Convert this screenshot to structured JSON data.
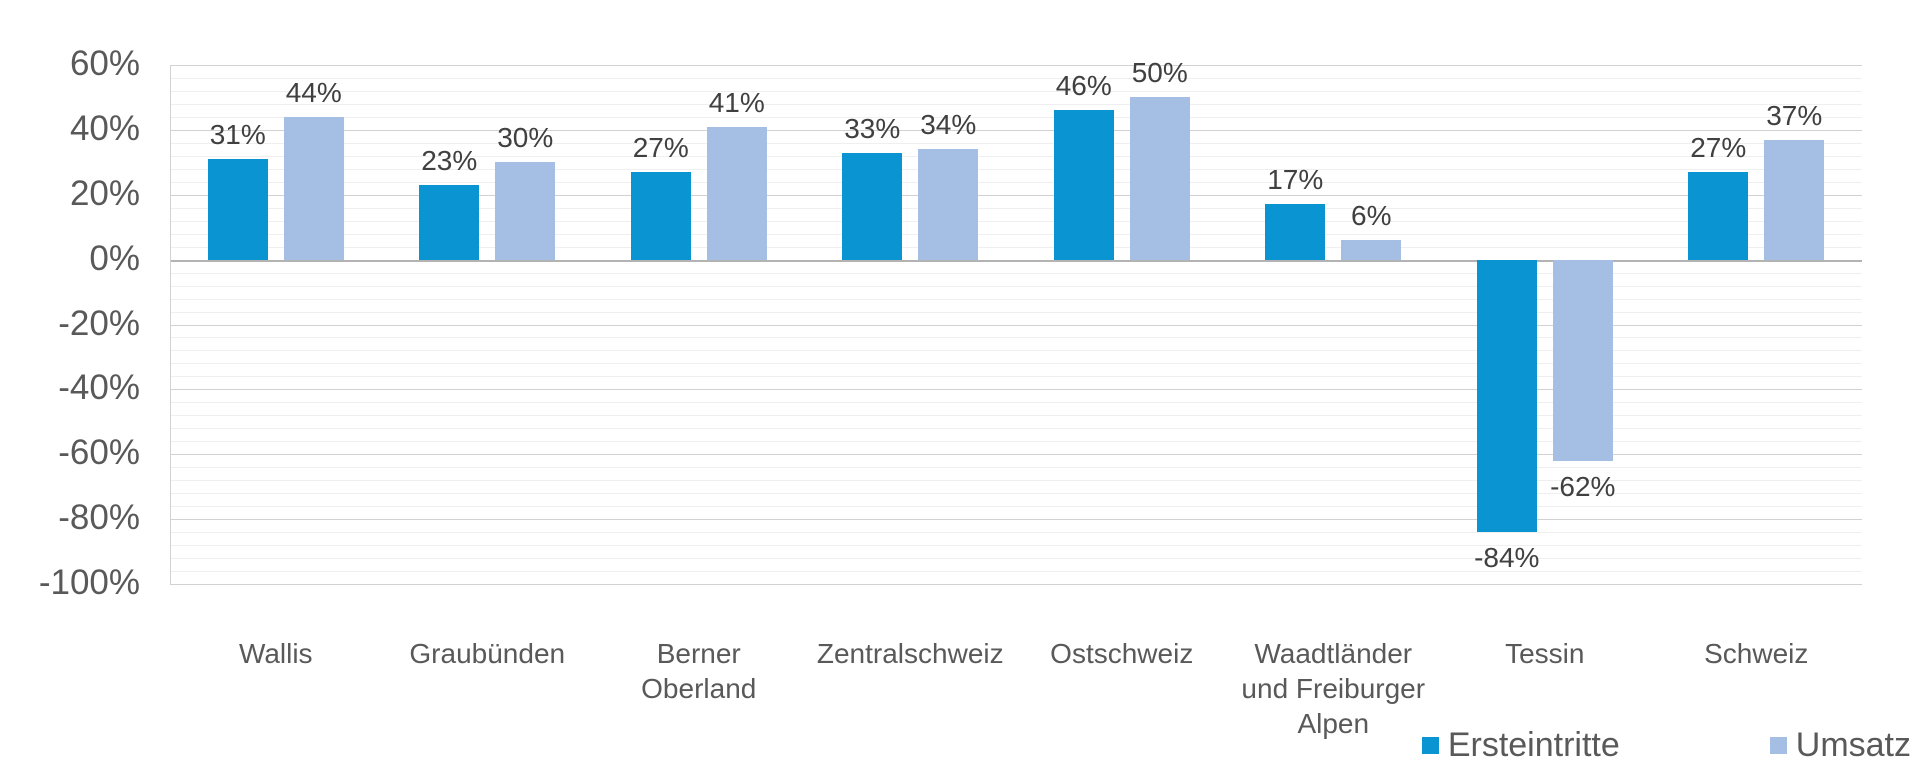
{
  "chart_data": {
    "type": "bar",
    "title": "",
    "categories": [
      {
        "lines": [
          "Wallis"
        ]
      },
      {
        "lines": [
          "Graubünden"
        ]
      },
      {
        "lines": [
          "Berner",
          "Oberland"
        ]
      },
      {
        "lines": [
          "Zentralschweiz"
        ]
      },
      {
        "lines": [
          "Ostschweiz"
        ]
      },
      {
        "lines": [
          "Waadtländer",
          "und Freiburger",
          "Alpen"
        ]
      },
      {
        "lines": [
          "Tessin"
        ]
      },
      {
        "lines": [
          "Schweiz"
        ]
      }
    ],
    "series": [
      {
        "name": "Ersteintritte",
        "color": "#0a94d2",
        "values": [
          31,
          23,
          27,
          33,
          46,
          17,
          -84,
          27
        ]
      },
      {
        "name": "Umsatz",
        "color": "#a5bfe4",
        "values": [
          44,
          30,
          41,
          34,
          50,
          6,
          -62,
          37
        ]
      }
    ],
    "value_suffix": "%",
    "data_labels": {
      "Ersteintritte": [
        "31%",
        "23%",
        "27%",
        "33%",
        "46%",
        "17%",
        "-84%",
        "27%"
      ],
      "Umsatz": [
        "44%",
        "30%",
        "41%",
        "34%",
        "50%",
        "6%",
        "-62%",
        "37%"
      ]
    },
    "y_axis": {
      "min": -100,
      "max": 60,
      "major_step": 20,
      "minor_step": 4,
      "tick_labels": [
        "60%",
        "40%",
        "20%",
        "0%",
        "-20%",
        "-40%",
        "-60%",
        "-80%",
        "-100%"
      ]
    },
    "grid": {
      "major": true,
      "minor": true
    },
    "legend_position": "bottom-right"
  },
  "colors": {
    "series_ersteintritte": "#0a94d2",
    "series_umsatz": "#a5bfe4",
    "axis_text": "#595959",
    "data_label_text": "#404040",
    "grid_major": "#d2d2d2",
    "grid_minor": "#efefef",
    "zero_line": "#b3b3b3"
  }
}
